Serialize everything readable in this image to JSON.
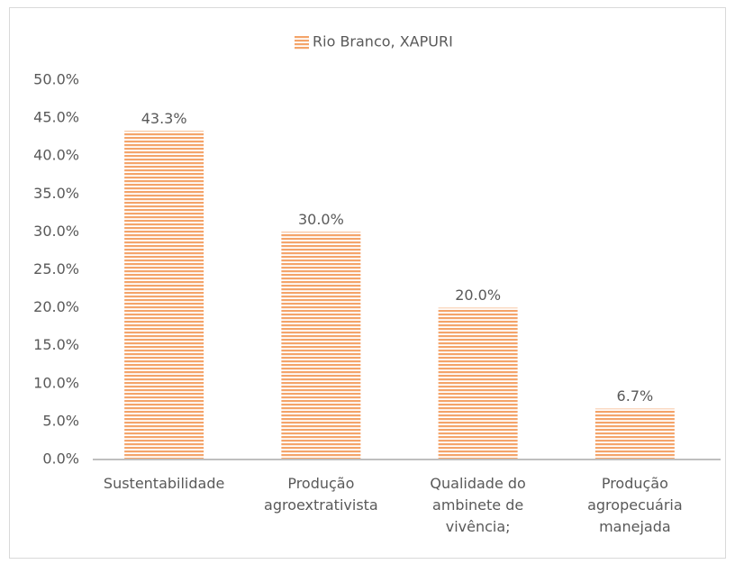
{
  "chart_data": {
    "type": "bar",
    "categories": [
      "Sustentabilidade",
      "Produção agroextrativista",
      "Qualidade do ambinete de vivência;",
      "Produção agropecuária manejada"
    ],
    "series": [
      {
        "name": "Rio Branco, XAPURI",
        "color": "#f4a46a",
        "values": [
          43.3,
          30.0,
          20.0,
          6.7
        ],
        "value_labels": [
          "43.3%",
          "30.0%",
          "20.0%",
          "6.7%"
        ]
      }
    ],
    "ylim": [
      0,
      50
    ],
    "yticks": [
      {
        "value": 0,
        "label": "0.0%"
      },
      {
        "value": 5,
        "label": "5.0%"
      },
      {
        "value": 10,
        "label": "10.0%"
      },
      {
        "value": 15,
        "label": "15.0%"
      },
      {
        "value": 20,
        "label": "20.0%"
      },
      {
        "value": 25,
        "label": "25.0%"
      },
      {
        "value": 30,
        "label": "30.0%"
      },
      {
        "value": 35,
        "label": "35.0%"
      },
      {
        "value": 40,
        "label": "40.0%"
      },
      {
        "value": 45,
        "label": "45.0%"
      },
      {
        "value": 50,
        "label": "50.0%"
      }
    ],
    "grid": false,
    "legend": "top"
  }
}
